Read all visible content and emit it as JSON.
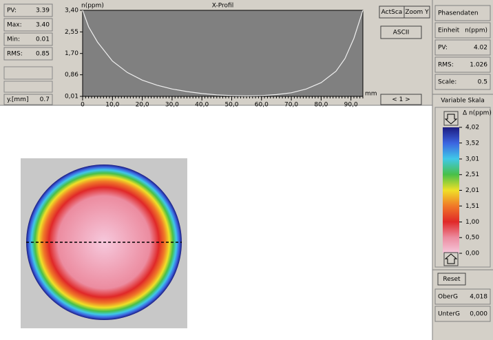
{
  "left_panel": {
    "fields": [
      {
        "label": "PV:",
        "value": "3.39"
      },
      {
        "label": "Max:",
        "value": "3.40"
      },
      {
        "label": "Min:",
        "value": "0.01"
      },
      {
        "label": "RMS:",
        "value": "0.85"
      }
    ],
    "y_field": {
      "label": "y.[mm]",
      "value": "0.7"
    }
  },
  "chart_data": {
    "type": "line",
    "title": "X-Profil",
    "y_label": "n(ppm)",
    "x_label": "mm",
    "x": [
      0,
      2,
      5,
      10,
      15,
      20,
      25,
      30,
      35,
      40,
      45,
      50,
      55,
      60,
      65,
      70,
      75,
      80,
      85,
      88,
      91,
      94
    ],
    "values": [
      3.4,
      2.75,
      2.15,
      1.4,
      0.95,
      0.65,
      0.45,
      0.3,
      0.2,
      0.12,
      0.07,
      0.04,
      0.03,
      0.04,
      0.08,
      0.15,
      0.3,
      0.55,
      1.0,
      1.5,
      2.3,
      3.4
    ],
    "color": "#f0f0f0",
    "background": "#808080",
    "xlim": [
      0,
      94
    ],
    "ylim": [
      0.01,
      3.4
    ],
    "xticks": [
      0,
      {
        "value": 10,
        "label": "10,0"
      },
      {
        "value": 20,
        "label": "20,0"
      },
      {
        "value": 30,
        "label": "30,0"
      },
      {
        "value": 40,
        "label": "40,0"
      },
      {
        "value": 50,
        "label": "50,0"
      },
      {
        "value": 60,
        "label": "60,0"
      },
      {
        "value": 70,
        "label": "70,0"
      },
      {
        "value": 80,
        "label": "80,0"
      },
      {
        "value": 90,
        "label": "90,0"
      }
    ],
    "yticks": [
      {
        "value": 0.01,
        "label": "0,01"
      },
      {
        "value": 0.86,
        "label": "0,86"
      },
      {
        "value": 1.7,
        "label": "1,70"
      },
      {
        "value": 2.55,
        "label": "2,55"
      },
      {
        "value": 3.4,
        "label": "3,40"
      }
    ],
    "grid": false
  },
  "buttons": {
    "act_scale": "ActSca",
    "zoom_y": "Zoom Y",
    "ascii": "ASCII",
    "page": "< 1 >"
  },
  "right_panel": {
    "title": "Phasendaten",
    "fields": [
      {
        "label": "Einheit",
        "value": "n(ppm)"
      },
      {
        "label": "PV:",
        "value": "4.02"
      },
      {
        "label": "RMS:",
        "value": "1.026"
      },
      {
        "label": "Scale:",
        "value": "0.5"
      }
    ]
  },
  "color_scale": {
    "title": "Variable Skala",
    "unit_label": "Δ n(ppm)",
    "range": [
      0,
      4.02
    ],
    "ticks": [
      {
        "value": 4.02,
        "label": "4,02"
      },
      {
        "value": 3.52,
        "label": "3,52"
      },
      {
        "value": 3.01,
        "label": "3,01"
      },
      {
        "value": 2.51,
        "label": "2,51"
      },
      {
        "value": 2.01,
        "label": "2,01"
      },
      {
        "value": 1.51,
        "label": "1,51"
      },
      {
        "value": 1.0,
        "label": "1,00"
      },
      {
        "value": 0.5,
        "label": "0,50"
      },
      {
        "value": 0.0,
        "label": "0,00"
      }
    ],
    "colors": [
      "#f6c8dc",
      "#ec8ca0",
      "#e02828",
      "#f07828",
      "#f0e028",
      "#48c048",
      "#40c8e8",
      "#3c64e0",
      "#1c1c80"
    ]
  },
  "reset_button": "Reset",
  "limits": [
    {
      "label": "OberG",
      "value": "4,018"
    },
    {
      "label": "UnterG",
      "value": "0,000"
    }
  ]
}
